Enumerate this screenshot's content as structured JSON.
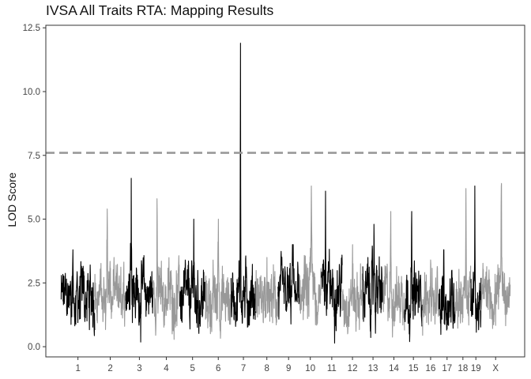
{
  "chart_data": {
    "type": "line",
    "title": "IVSA All Traits RTA: Mapping Results",
    "xlabel": "",
    "ylabel": "LOD Score",
    "ylim": [
      -0.4,
      12.6
    ],
    "y_ticks": [
      "0.0",
      "2.5",
      "5.0",
      "7.5",
      "10.0",
      "12.5"
    ],
    "grid": false,
    "threshold": {
      "value": 7.6,
      "style": "dashed",
      "color": "#999999"
    },
    "colors": {
      "odd_chromosome": "#000000",
      "even_chromosome": "#999999"
    },
    "chromosomes": [
      {
        "label": "1",
        "start": 0.0,
        "length": 197,
        "base": 1.9,
        "peak": 3.8,
        "peak_pos": 0.35
      },
      {
        "label": "2",
        "start": 197,
        "length": 182,
        "base": 2.0,
        "peak": 5.4,
        "peak_pos": 0.4
      },
      {
        "label": "3",
        "start": 379,
        "length": 160,
        "base": 2.1,
        "peak": 6.6,
        "peak_pos": 0.2
      },
      {
        "label": "4",
        "start": 539,
        "length": 156,
        "base": 2.0,
        "peak": 5.8,
        "peak_pos": 0.15
      },
      {
        "label": "5",
        "start": 695,
        "length": 152,
        "base": 1.9,
        "peak": 5.0,
        "peak_pos": 0.55
      },
      {
        "label": "6",
        "start": 847,
        "length": 150,
        "base": 1.8,
        "peak": 5.0,
        "peak_pos": 0.5
      },
      {
        "label": "7",
        "start": 997,
        "length": 145,
        "base": 2.0,
        "peak": 11.9,
        "peak_pos": 0.38
      },
      {
        "label": "8",
        "start": 1142,
        "length": 130,
        "base": 1.9,
        "peak": 3.5,
        "peak_pos": 0.5
      },
      {
        "label": "9",
        "start": 1272,
        "length": 125,
        "base": 1.9,
        "peak": 4.0,
        "peak_pos": 0.7
      },
      {
        "label": "10",
        "start": 1397,
        "length": 130,
        "base": 2.2,
        "peak": 6.3,
        "peak_pos": 0.55
      },
      {
        "label": "11",
        "start": 1527,
        "length": 122,
        "base": 2.3,
        "peak": 6.1,
        "peak_pos": 0.2
      },
      {
        "label": "12",
        "start": 1649,
        "length": 121,
        "base": 1.9,
        "peak": 4.0,
        "peak_pos": 0.5
      },
      {
        "label": "13",
        "start": 1770,
        "length": 120,
        "base": 2.1,
        "peak": 4.8,
        "peak_pos": 0.55
      },
      {
        "label": "14",
        "start": 1890,
        "length": 125,
        "base": 2.0,
        "peak": 5.3,
        "peak_pos": 0.35
      },
      {
        "label": "15",
        "start": 2015,
        "length": 104,
        "base": 2.0,
        "peak": 5.3,
        "peak_pos": 0.4
      },
      {
        "label": "16",
        "start": 2119,
        "length": 98,
        "base": 1.8,
        "peak": 3.4,
        "peak_pos": 0.5
      },
      {
        "label": "17",
        "start": 2217,
        "length": 95,
        "base": 1.8,
        "peak": 3.8,
        "peak_pos": 0.3
      },
      {
        "label": "18",
        "start": 2312,
        "length": 91,
        "base": 2.0,
        "peak": 6.2,
        "peak_pos": 0.7
      },
      {
        "label": "19",
        "start": 2403,
        "length": 61,
        "base": 1.8,
        "peak": 6.3,
        "peak_pos": 0.4
      },
      {
        "label": "X",
        "start": 2464,
        "length": 171,
        "base": 1.9,
        "peak": 6.4,
        "peak_pos": 0.7
      }
    ],
    "x_domain": [
      -90,
      2720
    ]
  }
}
